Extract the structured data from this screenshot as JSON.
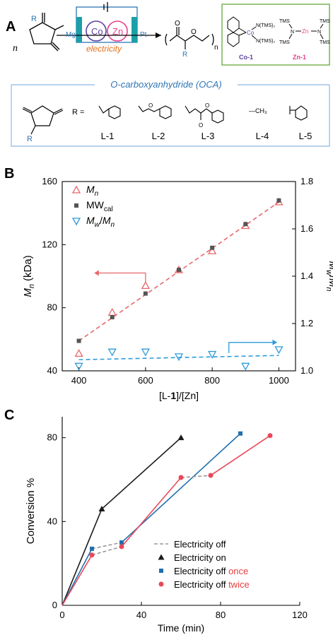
{
  "panels": {
    "a": "A",
    "b": "B",
    "c": "C"
  },
  "scheme": {
    "n_label": "n",
    "r_label": "R",
    "mg_label": "Mg",
    "co_label": "Co",
    "zn_label": "Zn",
    "pt_label": "Pt",
    "electricity_label": "electricity",
    "polymer_n": "n",
    "polymer_r": "R",
    "catalyst": {
      "ntms2_top": "N(TMS)₂",
      "ntms2_bottom": "N(TMS)₂",
      "co_center": "Co",
      "tms_a": "TMS",
      "tms_b": "TMS",
      "tms_c": "TMS",
      "tms_d": "TMS",
      "n_left": "N",
      "zn_center": "Zn",
      "n_right": "N",
      "co1_label": "Co-1",
      "zn1_label": "Zn-1"
    },
    "oca_title": "O-carboxyanhydride (OCA)",
    "oca_r": "R",
    "r_equals": "R =",
    "monomers": [
      "L-1",
      "L-2",
      "L-3",
      "L-4",
      "L-5"
    ],
    "ch3_label": "—CH₃",
    "colors": {
      "blue": "#2e75b6",
      "orange": "#e8701a",
      "purple": "#5b3fa0",
      "pink": "#e83e8c",
      "green": "#70ad47",
      "teal": "#00a3b4",
      "frame": "#9dc3e6"
    }
  },
  "chart_data": [
    {
      "type": "scatter",
      "panel": "B",
      "xlabel": "[L-1]/[Zn]",
      "ylabel": "Mn (kDa)",
      "y2label": "Mw/Mn",
      "xlim": [
        350,
        1050
      ],
      "ylim": [
        40,
        160
      ],
      "y2lim": [
        1.0,
        1.8
      ],
      "xticks": [
        400,
        600,
        800,
        1000
      ],
      "yticks": [
        40,
        80,
        120,
        160
      ],
      "y2ticks": [
        1.0,
        1.2,
        1.4,
        1.6,
        1.8
      ],
      "legend_position": "top-left",
      "legend": [
        "Mn",
        "MWcal",
        "Mw/Mn"
      ],
      "series": [
        {
          "name": "Mn",
          "axis": "left",
          "marker": "triangle-up-open",
          "color": "#e8676b",
          "x": [
            400,
            500,
            600,
            700,
            800,
            900,
            1000
          ],
          "y": [
            51,
            77,
            94,
            104,
            116,
            132,
            147
          ]
        },
        {
          "name": "MWcal",
          "axis": "left",
          "marker": "square",
          "color": "#555555",
          "x": [
            400,
            500,
            600,
            700,
            800,
            900,
            1000
          ],
          "y": [
            59,
            74,
            89,
            104,
            118,
            133,
            148
          ]
        },
        {
          "name": "Mw/Mn",
          "axis": "right",
          "marker": "triangle-down-open",
          "color": "#2e9cd8",
          "x": [
            400,
            500,
            600,
            700,
            800,
            900,
            1000
          ],
          "y": [
            1.02,
            1.08,
            1.08,
            1.06,
            1.07,
            1.02,
            1.09
          ]
        }
      ],
      "fits": [
        {
          "axis": "left",
          "color": "#e8676b",
          "x": [
            400,
            1000
          ],
          "y": [
            59,
            147
          ]
        },
        {
          "axis": "right",
          "color": "#2e9cd8",
          "x": [
            400,
            1000
          ],
          "y": [
            1.047,
            1.065
          ]
        }
      ],
      "arrows": [
        {
          "color": "#e8676b",
          "direction": "left"
        },
        {
          "color": "#2e9cd8",
          "direction": "right"
        }
      ]
    },
    {
      "type": "line",
      "panel": "C",
      "xlabel": "Time (min)",
      "ylabel": "Conversion %",
      "xlim": [
        0,
        120
      ],
      "ylim": [
        0,
        90
      ],
      "xticks": [
        0,
        40,
        80,
        120
      ],
      "yticks": [
        0,
        40,
        80
      ],
      "legend_position": "bottom-right",
      "legend": [
        {
          "label": "Electricity off",
          "highlight": ""
        },
        {
          "label": "Electricity on",
          "highlight": ""
        },
        {
          "label": "Electricity off ",
          "highlight": "once"
        },
        {
          "label": "Electricity off ",
          "highlight": "twice"
        }
      ],
      "highlight_color": "#e83e3e",
      "off_line_color": "#999999",
      "series": [
        {
          "name": "Electricity on",
          "marker": "triangle",
          "color": "#1a1a1a",
          "x": [
            0,
            20,
            60
          ],
          "y": [
            0,
            46,
            80
          ],
          "on_segments": [
            [
              0,
              1
            ],
            [
              1,
              2
            ]
          ],
          "off_segments": []
        },
        {
          "name": "Electricity off once",
          "marker": "square",
          "color": "#1f6fad",
          "x": [
            0,
            15,
            30,
            90
          ],
          "y": [
            0,
            27,
            30,
            82
          ],
          "on_segments": [
            [
              0,
              1
            ],
            [
              2,
              3
            ]
          ],
          "off_segments": [
            [
              1,
              2
            ]
          ]
        },
        {
          "name": "Electricity off twice",
          "marker": "circle",
          "color": "#e8485a",
          "x": [
            0,
            15,
            30,
            60,
            75,
            105
          ],
          "y": [
            0,
            24,
            28,
            61,
            62,
            81
          ],
          "on_segments": [
            [
              0,
              1
            ],
            [
              2,
              3
            ],
            [
              4,
              5
            ]
          ],
          "off_segments": [
            [
              1,
              2
            ],
            [
              3,
              4
            ]
          ]
        }
      ]
    }
  ]
}
